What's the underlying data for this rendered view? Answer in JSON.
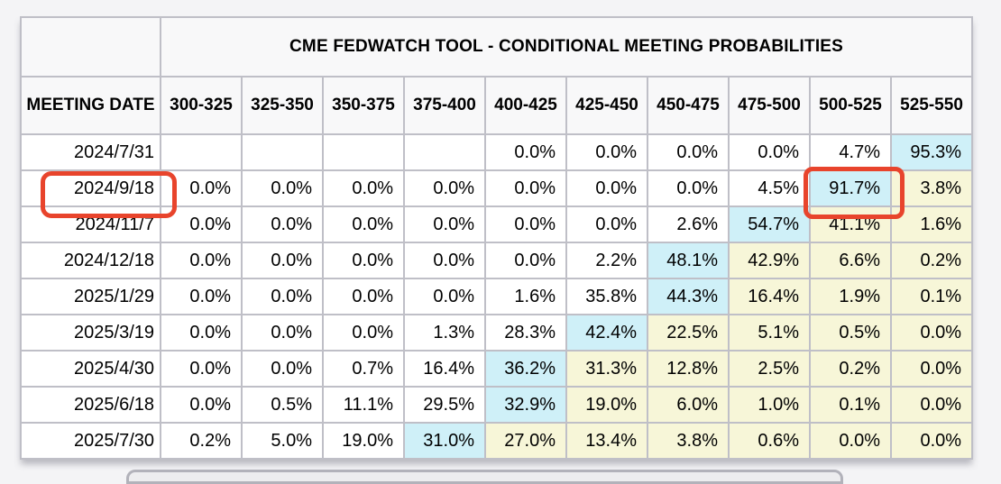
{
  "page": {
    "background_color": "#f4f4f6"
  },
  "table": {
    "title": "CME FEDWATCH TOOL - CONDITIONAL MEETING PROBABILITIES",
    "date_column_header": "MEETING DATE",
    "rate_bins": [
      "300-325",
      "325-350",
      "350-375",
      "375-400",
      "400-425",
      "425-450",
      "450-475",
      "475-500",
      "500-525",
      "525-550"
    ],
    "rows": [
      {
        "date": "2024/7/31",
        "cells": [
          {
            "v": "",
            "bg": "none"
          },
          {
            "v": "",
            "bg": "none"
          },
          {
            "v": "",
            "bg": "none"
          },
          {
            "v": "",
            "bg": "none"
          },
          {
            "v": "0.0%",
            "bg": "none"
          },
          {
            "v": "0.0%",
            "bg": "none"
          },
          {
            "v": "0.0%",
            "bg": "none"
          },
          {
            "v": "0.0%",
            "bg": "none"
          },
          {
            "v": "4.7%",
            "bg": "none"
          },
          {
            "v": "95.3%",
            "bg": "max"
          }
        ]
      },
      {
        "date": "2024/9/18",
        "date_annotated": true,
        "cells": [
          {
            "v": "0.0%",
            "bg": "none"
          },
          {
            "v": "0.0%",
            "bg": "none"
          },
          {
            "v": "0.0%",
            "bg": "none"
          },
          {
            "v": "0.0%",
            "bg": "none"
          },
          {
            "v": "0.0%",
            "bg": "none"
          },
          {
            "v": "0.0%",
            "bg": "none"
          },
          {
            "v": "0.0%",
            "bg": "none"
          },
          {
            "v": "4.5%",
            "bg": "none"
          },
          {
            "v": "91.7%",
            "bg": "max",
            "annotated": true
          },
          {
            "v": "3.8%",
            "bg": "above"
          }
        ]
      },
      {
        "date": "2024/11/7",
        "cells": [
          {
            "v": "0.0%",
            "bg": "none"
          },
          {
            "v": "0.0%",
            "bg": "none"
          },
          {
            "v": "0.0%",
            "bg": "none"
          },
          {
            "v": "0.0%",
            "bg": "none"
          },
          {
            "v": "0.0%",
            "bg": "none"
          },
          {
            "v": "0.0%",
            "bg": "none"
          },
          {
            "v": "2.6%",
            "bg": "none"
          },
          {
            "v": "54.7%",
            "bg": "max"
          },
          {
            "v": "41.1%",
            "bg": "above"
          },
          {
            "v": "1.6%",
            "bg": "above"
          }
        ]
      },
      {
        "date": "2024/12/18",
        "cells": [
          {
            "v": "0.0%",
            "bg": "none"
          },
          {
            "v": "0.0%",
            "bg": "none"
          },
          {
            "v": "0.0%",
            "bg": "none"
          },
          {
            "v": "0.0%",
            "bg": "none"
          },
          {
            "v": "0.0%",
            "bg": "none"
          },
          {
            "v": "2.2%",
            "bg": "none"
          },
          {
            "v": "48.1%",
            "bg": "max"
          },
          {
            "v": "42.9%",
            "bg": "above"
          },
          {
            "v": "6.6%",
            "bg": "above"
          },
          {
            "v": "0.2%",
            "bg": "above"
          }
        ]
      },
      {
        "date": "2025/1/29",
        "cells": [
          {
            "v": "0.0%",
            "bg": "none"
          },
          {
            "v": "0.0%",
            "bg": "none"
          },
          {
            "v": "0.0%",
            "bg": "none"
          },
          {
            "v": "0.0%",
            "bg": "none"
          },
          {
            "v": "1.6%",
            "bg": "none"
          },
          {
            "v": "35.8%",
            "bg": "none"
          },
          {
            "v": "44.3%",
            "bg": "max"
          },
          {
            "v": "16.4%",
            "bg": "above"
          },
          {
            "v": "1.9%",
            "bg": "above"
          },
          {
            "v": "0.1%",
            "bg": "above"
          }
        ]
      },
      {
        "date": "2025/3/19",
        "cells": [
          {
            "v": "0.0%",
            "bg": "none"
          },
          {
            "v": "0.0%",
            "bg": "none"
          },
          {
            "v": "0.0%",
            "bg": "none"
          },
          {
            "v": "1.3%",
            "bg": "none"
          },
          {
            "v": "28.3%",
            "bg": "none"
          },
          {
            "v": "42.4%",
            "bg": "max"
          },
          {
            "v": "22.5%",
            "bg": "above"
          },
          {
            "v": "5.1%",
            "bg": "above"
          },
          {
            "v": "0.5%",
            "bg": "above"
          },
          {
            "v": "0.0%",
            "bg": "above"
          }
        ]
      },
      {
        "date": "2025/4/30",
        "cells": [
          {
            "v": "0.0%",
            "bg": "none"
          },
          {
            "v": "0.0%",
            "bg": "none"
          },
          {
            "v": "0.7%",
            "bg": "none"
          },
          {
            "v": "16.4%",
            "bg": "none"
          },
          {
            "v": "36.2%",
            "bg": "max"
          },
          {
            "v": "31.3%",
            "bg": "above"
          },
          {
            "v": "12.8%",
            "bg": "above"
          },
          {
            "v": "2.5%",
            "bg": "above"
          },
          {
            "v": "0.2%",
            "bg": "above"
          },
          {
            "v": "0.0%",
            "bg": "above"
          }
        ]
      },
      {
        "date": "2025/6/18",
        "cells": [
          {
            "v": "0.0%",
            "bg": "none"
          },
          {
            "v": "0.5%",
            "bg": "none"
          },
          {
            "v": "11.1%",
            "bg": "none"
          },
          {
            "v": "29.5%",
            "bg": "none"
          },
          {
            "v": "32.9%",
            "bg": "max"
          },
          {
            "v": "19.0%",
            "bg": "above"
          },
          {
            "v": "6.0%",
            "bg": "above"
          },
          {
            "v": "1.0%",
            "bg": "above"
          },
          {
            "v": "0.1%",
            "bg": "above"
          },
          {
            "v": "0.0%",
            "bg": "above"
          }
        ]
      },
      {
        "date": "2025/7/30",
        "cells": [
          {
            "v": "0.2%",
            "bg": "none"
          },
          {
            "v": "5.0%",
            "bg": "none"
          },
          {
            "v": "19.0%",
            "bg": "none"
          },
          {
            "v": "31.0%",
            "bg": "max"
          },
          {
            "v": "27.0%",
            "bg": "above"
          },
          {
            "v": "13.4%",
            "bg": "above"
          },
          {
            "v": "3.8%",
            "bg": "above"
          },
          {
            "v": "0.6%",
            "bg": "above"
          },
          {
            "v": "0.0%",
            "bg": "above"
          },
          {
            "v": "0.0%",
            "bg": "above"
          }
        ]
      }
    ],
    "colors": {
      "max_cell_bg": "#cff0f8",
      "above_cell_bg": "#f7f6d8",
      "cell_bg": "#ffffff",
      "header_bg": "#f8f8f9",
      "border": "#bfbfc7",
      "annotation_red": "#e8442c"
    }
  },
  "annotations": {
    "highlighted_date": "2024/9/18",
    "highlighted_value": "91.7%",
    "highlighted_bin": "500-525"
  }
}
